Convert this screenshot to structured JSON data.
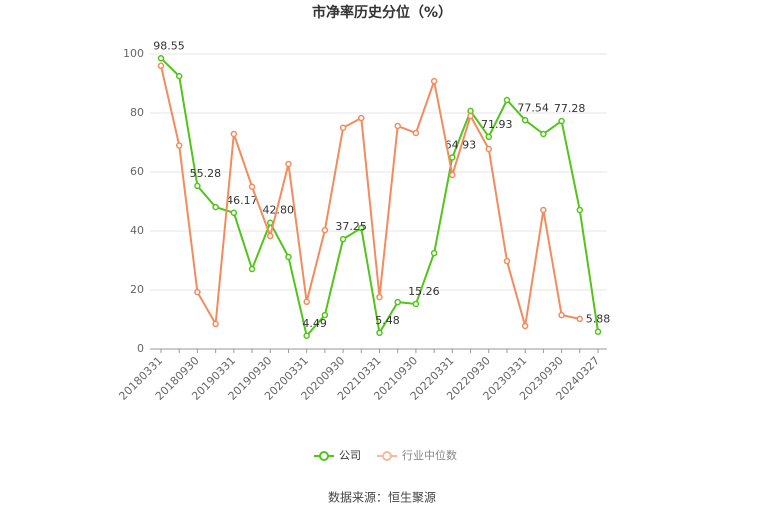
{
  "chart_data": {
    "type": "line",
    "title": "市净率历史分位（%）",
    "source": "数据来源：恒生聚源",
    "categories": [
      "20180331",
      null,
      "20180930",
      null,
      "20190331",
      null,
      "20190930",
      null,
      "20200331",
      null,
      "20200930",
      null,
      "20210331",
      null,
      "20210930",
      null,
      "20220331",
      null,
      "20220930",
      null,
      "20230331",
      null,
      "20230930",
      null,
      "20240327"
    ],
    "series": [
      {
        "name": "公司",
        "color": "#52c41a",
        "values": [
          98.55,
          92.5,
          55.28,
          48.1,
          46.17,
          27.1,
          42.8,
          31.2,
          4.49,
          11.5,
          37.25,
          41,
          5.48,
          15.9,
          15.26,
          32.5,
          64.93,
          80.7,
          71.93,
          84.4,
          77.54,
          72.9,
          77.28,
          47.1,
          5.88
        ],
        "value_labels": [
          "98.55",
          null,
          "55.28",
          null,
          "46.17",
          null,
          "42.80",
          null,
          "4.49",
          null,
          "37.25",
          null,
          "5.48",
          null,
          "15.26",
          null,
          "64.93",
          null,
          "71.93",
          null,
          "77.54",
          null,
          "77.28",
          null,
          "5.88"
        ]
      },
      {
        "name": "行业中位数",
        "color": "#f28c5e",
        "values": [
          96,
          69,
          19.3,
          8.5,
          72.9,
          55,
          38.3,
          62.7,
          16,
          40.3,
          75,
          78.3,
          17.6,
          75.6,
          73.2,
          90.8,
          59,
          79,
          67.8,
          29.8,
          7.8,
          47.1,
          11.5,
          10.2,
          null
        ]
      }
    ],
    "ylim": [
      0,
      100
    ],
    "yticks": [
      0,
      20,
      40,
      60,
      80,
      100
    ],
    "grid": true,
    "legend": "bottom"
  }
}
